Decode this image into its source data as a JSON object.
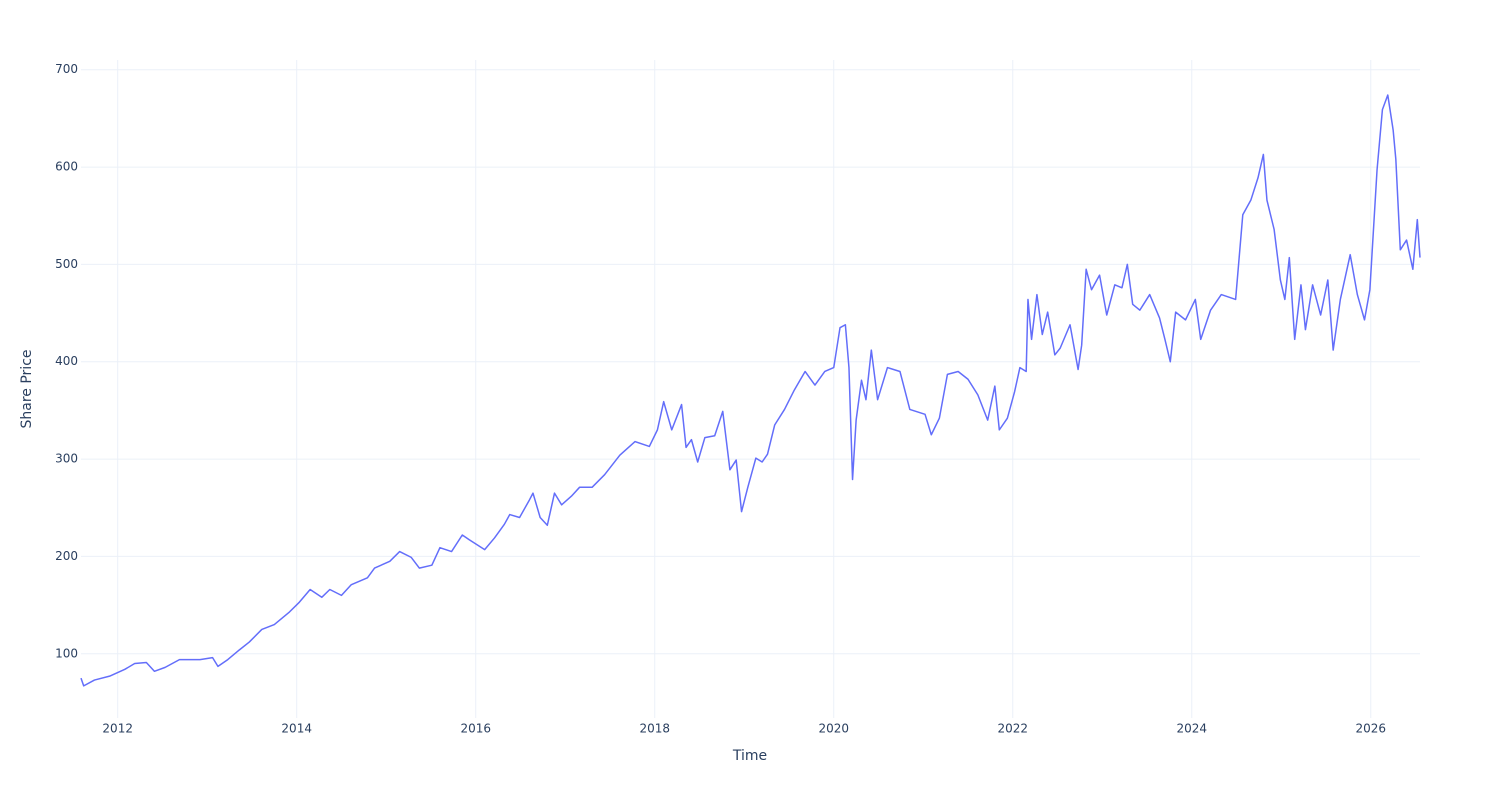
{
  "chart_data": {
    "type": "line",
    "x_label": "Time",
    "y_label": "Share Price",
    "color": "#636efa",
    "grid": true,
    "xlim": [
      2011.59,
      2026.55
    ],
    "xticks": [
      2012,
      2014,
      2016,
      2018,
      2020,
      2022,
      2024,
      2026
    ],
    "ylim": [
      34,
      710
    ],
    "yticks": [
      100,
      200,
      300,
      400,
      500,
      600,
      700
    ],
    "x": [
      2011.59,
      2011.62,
      2011.74,
      2011.91,
      2012.08,
      2012.19,
      2012.32,
      2012.41,
      2012.53,
      2012.69,
      2012.92,
      2013.06,
      2013.12,
      2013.23,
      2013.36,
      2013.47,
      2013.61,
      2013.75,
      2013.92,
      2014.03,
      2014.15,
      2014.28,
      2014.37,
      2014.5,
      2014.61,
      2014.79,
      2014.87,
      2015.04,
      2015.15,
      2015.28,
      2015.37,
      2015.51,
      2015.6,
      2015.73,
      2015.85,
      2015.93,
      2016.1,
      2016.21,
      2016.32,
      2016.38,
      2016.49,
      2016.6,
      2016.64,
      2016.72,
      2016.8,
      2016.88,
      2016.96,
      2017.07,
      2017.16,
      2017.3,
      2017.44,
      2017.61,
      2017.78,
      2017.94,
      2018.03,
      2018.1,
      2018.19,
      2018.3,
      2018.35,
      2018.41,
      2018.48,
      2018.56,
      2018.67,
      2018.76,
      2018.84,
      2018.91,
      2018.97,
      2019.04,
      2019.13,
      2019.2,
      2019.26,
      2019.34,
      2019.45,
      2019.56,
      2019.68,
      2019.79,
      2019.9,
      2020.0,
      2020.07,
      2020.13,
      2020.17,
      2020.21,
      2020.25,
      2020.31,
      2020.36,
      2020.42,
      2020.49,
      2020.6,
      2020.74,
      2020.85,
      2021.02,
      2021.09,
      2021.18,
      2021.27,
      2021.39,
      2021.5,
      2021.61,
      2021.72,
      2021.8,
      2021.85,
      2021.94,
      2022.02,
      2022.08,
      2022.15,
      2022.17,
      2022.21,
      2022.27,
      2022.33,
      2022.39,
      2022.47,
      2022.53,
      2022.64,
      2022.73,
      2022.77,
      2022.82,
      2022.88,
      2022.97,
      2023.05,
      2023.14,
      2023.22,
      2023.28,
      2023.34,
      2023.42,
      2023.53,
      2023.64,
      2023.7,
      2023.76,
      2023.82,
      2023.93,
      2024.04,
      2024.1,
      2024.21,
      2024.33,
      2024.49,
      2024.57,
      2024.66,
      2024.74,
      2024.8,
      2024.84,
      2024.92,
      2024.99,
      2025.04,
      2025.09,
      2025.15,
      2025.22,
      2025.27,
      2025.35,
      2025.44,
      2025.52,
      2025.58,
      2025.66,
      2025.77,
      2025.85,
      2025.93,
      2025.99,
      2026.07,
      2026.13,
      2026.19,
      2026.25,
      2026.28,
      2026.33,
      2026.4,
      2026.47,
      2026.52,
      2026.55
    ],
    "values": [
      75,
      67,
      73,
      77,
      84,
      90,
      91,
      82,
      86,
      94,
      94,
      96,
      87,
      94,
      104,
      112,
      125,
      130,
      143,
      153,
      166,
      158,
      166,
      160,
      171,
      178,
      188,
      195,
      205,
      199,
      188,
      191,
      209,
      205,
      222,
      217,
      207,
      219,
      233,
      243,
      240,
      258,
      265,
      240,
      232,
      265,
      253,
      262,
      271,
      271,
      284,
      304,
      318,
      313,
      330,
      359,
      330,
      356,
      312,
      320,
      297,
      322,
      324,
      349,
      289,
      299,
      246,
      271,
      301,
      297,
      305,
      335,
      351,
      371,
      390,
      376,
      390,
      394,
      435,
      438,
      394,
      279,
      340,
      381,
      361,
      412,
      361,
      394,
      390,
      351,
      346,
      325,
      342,
      387,
      390,
      382,
      366,
      340,
      375,
      330,
      342,
      369,
      394,
      390,
      464,
      423,
      469,
      428,
      451,
      407,
      414,
      438,
      392,
      417,
      495,
      474,
      489,
      448,
      479,
      476,
      500,
      459,
      453,
      469,
      445,
      423,
      400,
      451,
      443,
      464,
      423,
      453,
      469,
      464,
      551,
      566,
      589,
      613,
      566,
      536,
      484,
      464,
      507,
      423,
      479,
      433,
      479,
      448,
      484,
      412,
      464,
      510,
      469,
      443,
      474,
      597,
      659,
      674,
      638,
      608,
      515,
      525,
      495,
      546,
      507
    ]
  }
}
